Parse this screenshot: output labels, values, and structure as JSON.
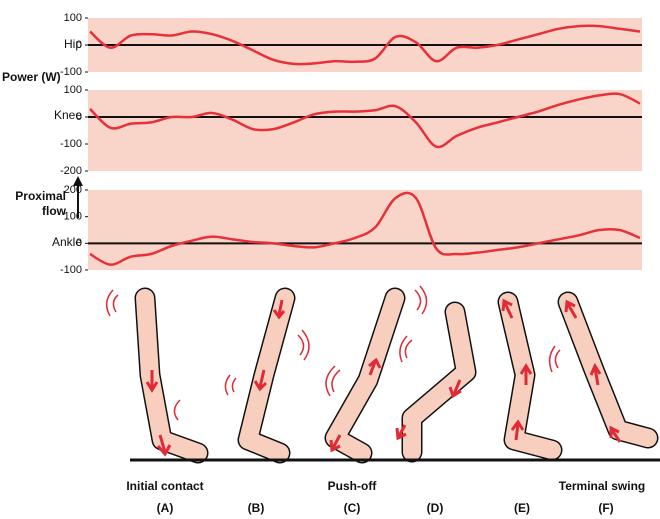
{
  "chart_data": [
    {
      "type": "line",
      "label": "Hip",
      "color": "#e8303a",
      "panel_color": "#f8d5c8",
      "reference_line": 0,
      "ylim": [
        -100,
        100
      ],
      "yticks": [
        -100,
        0,
        100
      ],
      "values": [
        50,
        -10,
        35,
        40,
        35,
        50,
        40,
        15,
        -20,
        -55,
        -70,
        -68,
        -60,
        -62,
        -50,
        30,
        10,
        -60,
        -10,
        -10,
        0,
        20,
        40,
        60,
        70,
        70,
        60,
        50
      ]
    },
    {
      "type": "line",
      "label": "Knee",
      "color": "#e8303a",
      "panel_color": "#f8d5c8",
      "reference_line": 0,
      "ylim": [
        -200,
        100
      ],
      "yticks": [
        -200,
        -100,
        0,
        100
      ],
      "values": [
        30,
        -40,
        -25,
        -20,
        0,
        0,
        15,
        -10,
        -45,
        -45,
        -20,
        10,
        20,
        20,
        25,
        40,
        -20,
        -110,
        -70,
        -40,
        -20,
        0,
        20,
        45,
        65,
        80,
        85,
        50
      ]
    },
    {
      "type": "line",
      "label": "Ankle",
      "color": "#e8303a",
      "panel_color": "#f8d5c8",
      "reference_line": 0,
      "ylim": [
        -100,
        200
      ],
      "yticks": [
        -100,
        0,
        100,
        200
      ],
      "values": [
        -40,
        -80,
        -50,
        -40,
        -10,
        10,
        25,
        15,
        5,
        0,
        -10,
        -15,
        0,
        20,
        60,
        170,
        170,
        -20,
        -40,
        -35,
        -25,
        -15,
        0,
        15,
        30,
        50,
        50,
        20
      ]
    }
  ],
  "power_label": "Power (W)",
  "flow_label": [
    "Proximal",
    "flow"
  ],
  "phase_names": [
    "Initial contact",
    null,
    "Push-off",
    null,
    null,
    "Terminal swing"
  ],
  "phase_letters": [
    "(A)",
    "(B)",
    "(C)",
    "(D)",
    "(E)",
    "(F)"
  ]
}
